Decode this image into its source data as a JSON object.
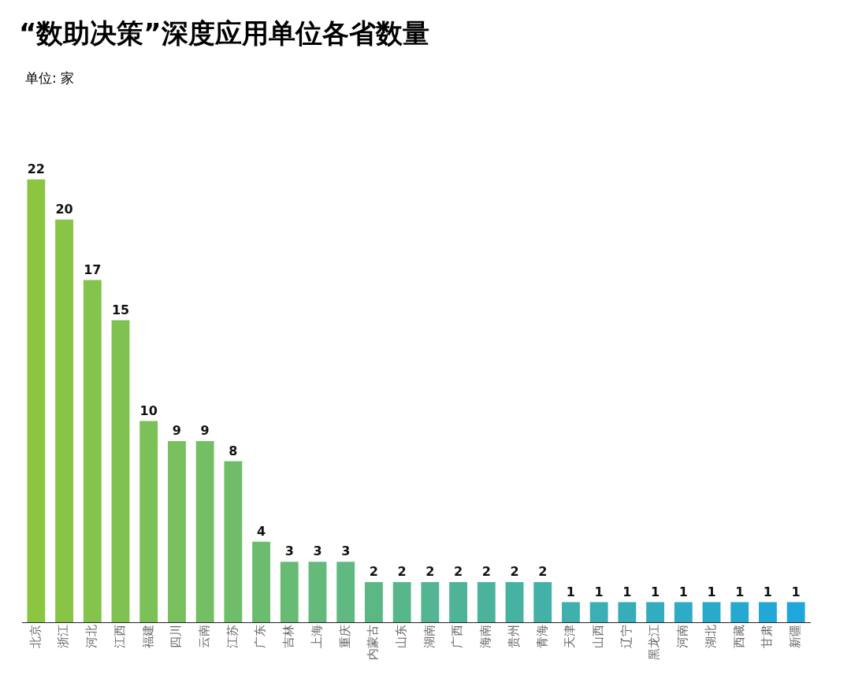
{
  "chart_data": {
    "type": "bar",
    "title": "“数助决策”深度应用单位各省数量",
    "subtitle": "单位: 家",
    "categories": [
      "北京",
      "浙江",
      "河北",
      "江西",
      "福建",
      "四川",
      "云南",
      "江苏",
      "广东",
      "吉林",
      "上海",
      "重庆",
      "内蒙古",
      "山东",
      "湖南",
      "广西",
      "海南",
      "贵州",
      "青海",
      "天津",
      "山西",
      "辽宁",
      "黑龙江",
      "河南",
      "湖北",
      "西藏",
      "甘肃",
      "新疆"
    ],
    "values": [
      22,
      20,
      17,
      15,
      10,
      9,
      9,
      8,
      4,
      3,
      3,
      3,
      2,
      2,
      2,
      2,
      2,
      2,
      2,
      1,
      1,
      1,
      1,
      1,
      1,
      1,
      1,
      1
    ],
    "colors": [
      "#8cc540",
      "#88c446",
      "#84c34c",
      "#80c251",
      "#7cc157",
      "#78bf5d",
      "#74be63",
      "#6fbd68",
      "#6bbc6e",
      "#67bb74",
      "#63ba7a",
      "#5fb980",
      "#5bb885",
      "#57b78b",
      "#53b591",
      "#4fb497",
      "#4bb39c",
      "#47b2a2",
      "#43b1a8",
      "#3fb0ae",
      "#3bafb4",
      "#37adb9",
      "#33acbf",
      "#2eabc5",
      "#2aaacb",
      "#26a9d0",
      "#22a8d6",
      "#1ea7dc"
    ],
    "data_labels": true,
    "grid": false
  }
}
